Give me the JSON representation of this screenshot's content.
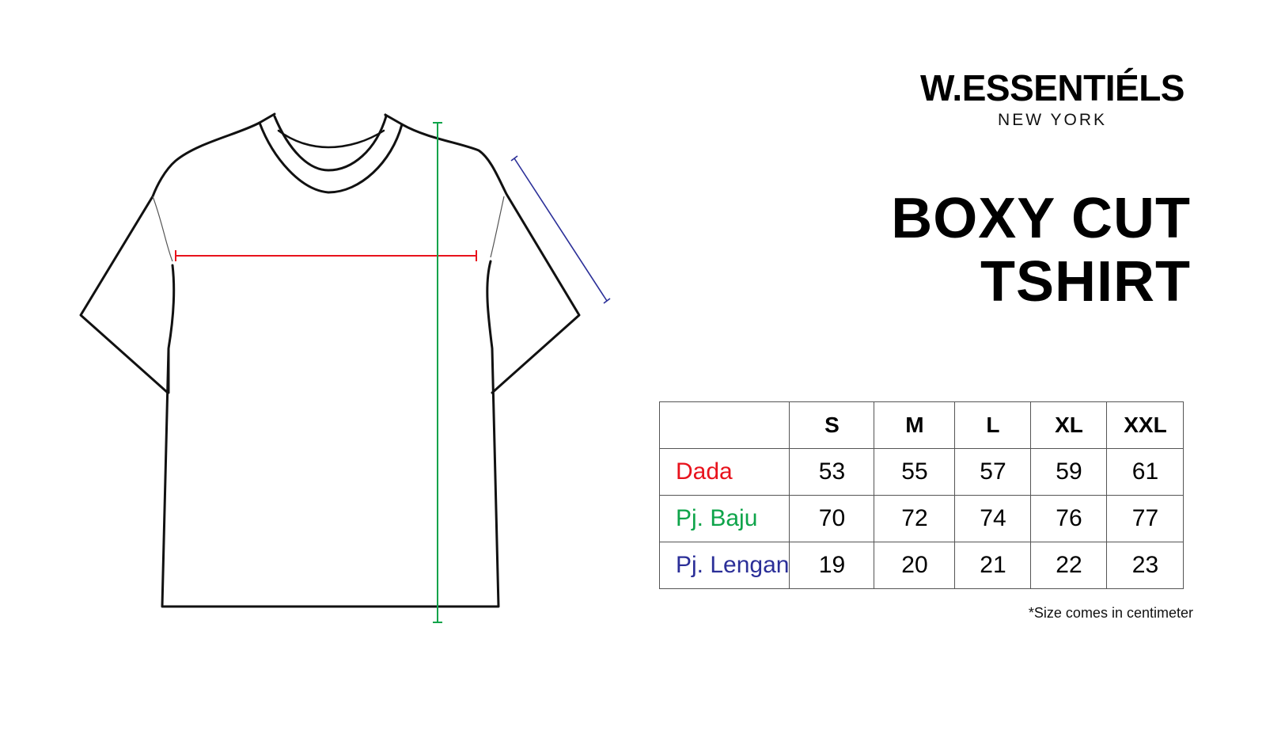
{
  "brand": {
    "name": "W.ESSENTIÉLS",
    "location": "NEW YORK"
  },
  "title": {
    "line1": "BOXY CUT",
    "line2": "TSHIRT"
  },
  "colors": {
    "dada": "#e8121c",
    "pj_baju": "#0ea44a",
    "pj_lengan": "#2b2f98"
  },
  "table": {
    "headers": [
      "",
      "S",
      "M",
      "L",
      "XL",
      "XXL"
    ],
    "rows": [
      {
        "label": "Dada",
        "values": [
          "53",
          "55",
          "57",
          "59",
          "61"
        ]
      },
      {
        "label": "Pj. Baju",
        "values": [
          "70",
          "72",
          "74",
          "76",
          "77"
        ]
      },
      {
        "label": "Pj. Lengan",
        "values": [
          "19",
          "20",
          "21",
          "22",
          "23"
        ]
      }
    ]
  },
  "note": "*Size comes in centimeter"
}
